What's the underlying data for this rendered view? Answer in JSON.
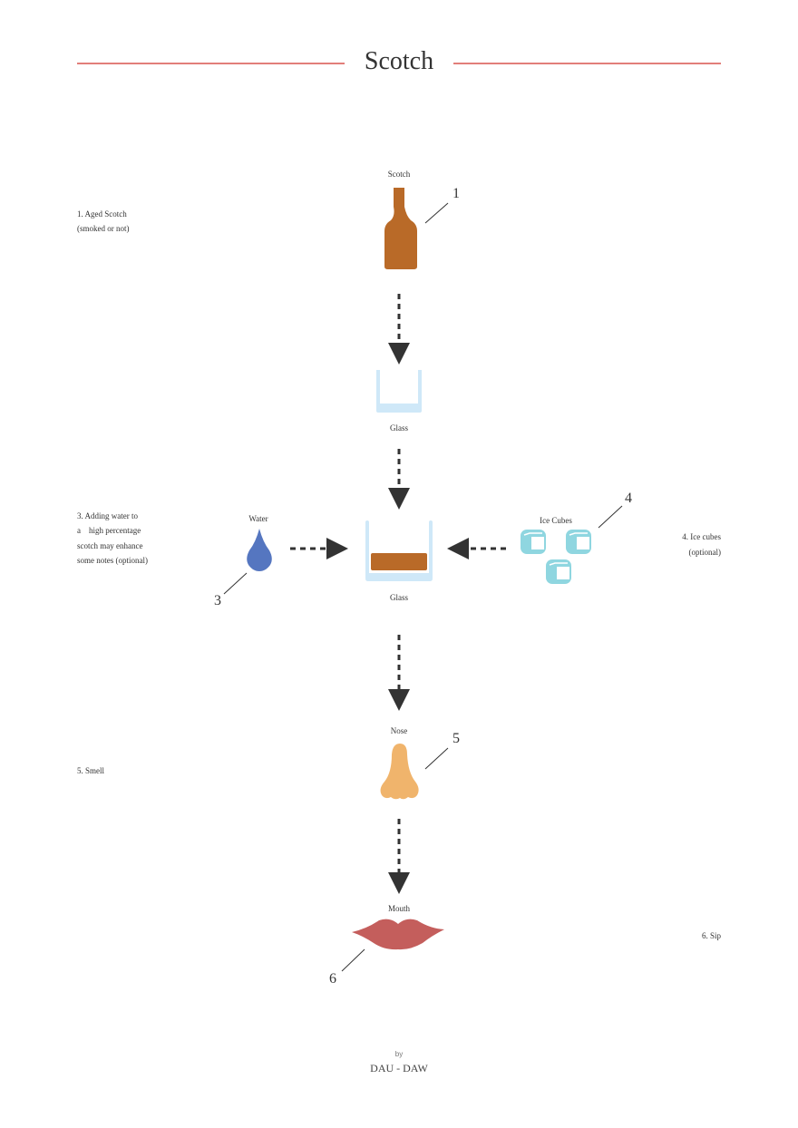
{
  "title": "Scotch",
  "colors": {
    "accent_line": "#d9534f",
    "scotch": "#b96a28",
    "glass": "#cfe8f8",
    "water": "#5576c0",
    "ice": "#8fd6e0",
    "nose": "#f0b46c",
    "mouth": "#c45e5c",
    "arrow": "#333333"
  },
  "items": {
    "scotch": {
      "label": "Scotch",
      "number": "1",
      "icon": "bottle-icon"
    },
    "glass_empty": {
      "label": "Glass",
      "icon": "glass-icon"
    },
    "glass_filled": {
      "label": "Glass",
      "icon": "glass-with-scotch-icon"
    },
    "water": {
      "label": "Water",
      "number": "3",
      "icon": "water-drop-icon"
    },
    "ice": {
      "label": "Ice Cubes",
      "number": "4",
      "icon": "ice-cube-icon"
    },
    "nose": {
      "label": "Nose",
      "number": "5",
      "icon": "nose-icon"
    },
    "mouth": {
      "label": "Mouth",
      "number": "6",
      "icon": "lips-icon"
    }
  },
  "notes": {
    "step1": [
      "1. Aged Scotch",
      "(smoked or not)"
    ],
    "step3": [
      "3. Adding water to",
      "a    high percentage",
      "scotch may enhance",
      "some notes (optional)"
    ],
    "step4": [
      "4. Ice cubes",
      "(optional)"
    ],
    "step5": "5. Smell",
    "step6": "6. Sip"
  },
  "footer": {
    "by": "by",
    "brand": "DAU - DAW"
  }
}
